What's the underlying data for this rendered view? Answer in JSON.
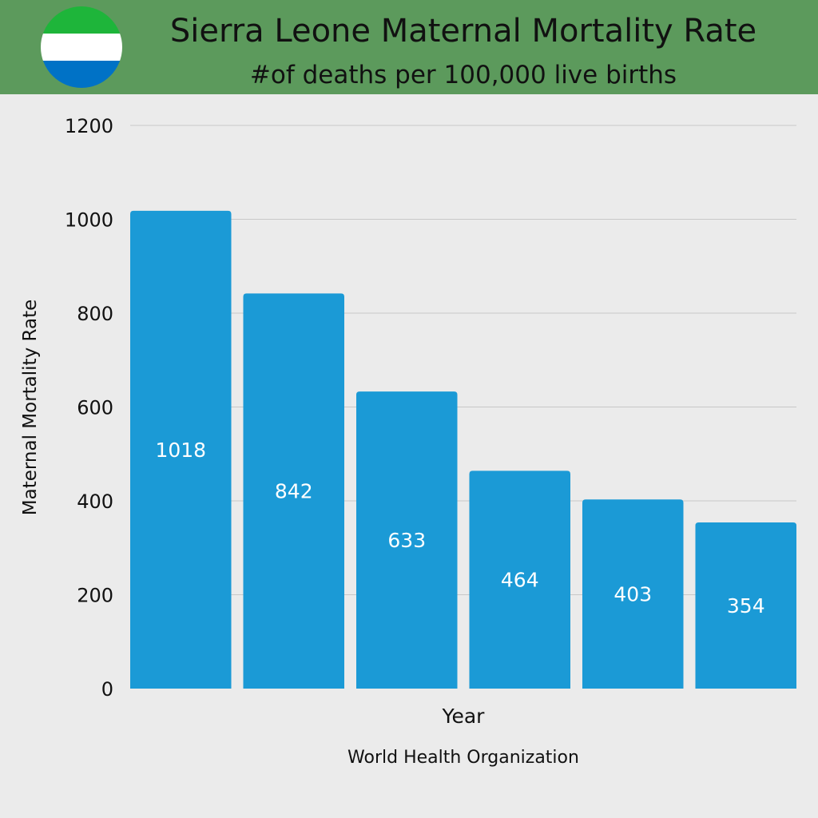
{
  "header": {
    "title": "Sierra Leone Maternal Mortality Rate",
    "subtitle": "#of deaths per 100,000 live births",
    "flag_icon": "sierra-leone-flag-icon",
    "bg_color": "#5c9a5c"
  },
  "chart_data": {
    "type": "bar",
    "title": "Sierra Leone Maternal Mortality Rate",
    "subtitle": "#of deaths per 100,000 live births",
    "xlabel": "Year",
    "ylabel": "Maternal Mortality Rate",
    "values": [
      1018,
      842,
      633,
      464,
      403,
      354
    ],
    "ylim": [
      0,
      1200
    ],
    "yticks": [
      0,
      200,
      400,
      600,
      800,
      1000,
      1200
    ],
    "grid": true,
    "bar_color": "#1b9ad6",
    "label_color": "#ffffff",
    "source": "World Health Organization"
  },
  "colors": {
    "flag_green": "#1eb53a",
    "flag_white": "#ffffff",
    "flag_blue": "#0072c6",
    "background": "#ebebeb"
  }
}
